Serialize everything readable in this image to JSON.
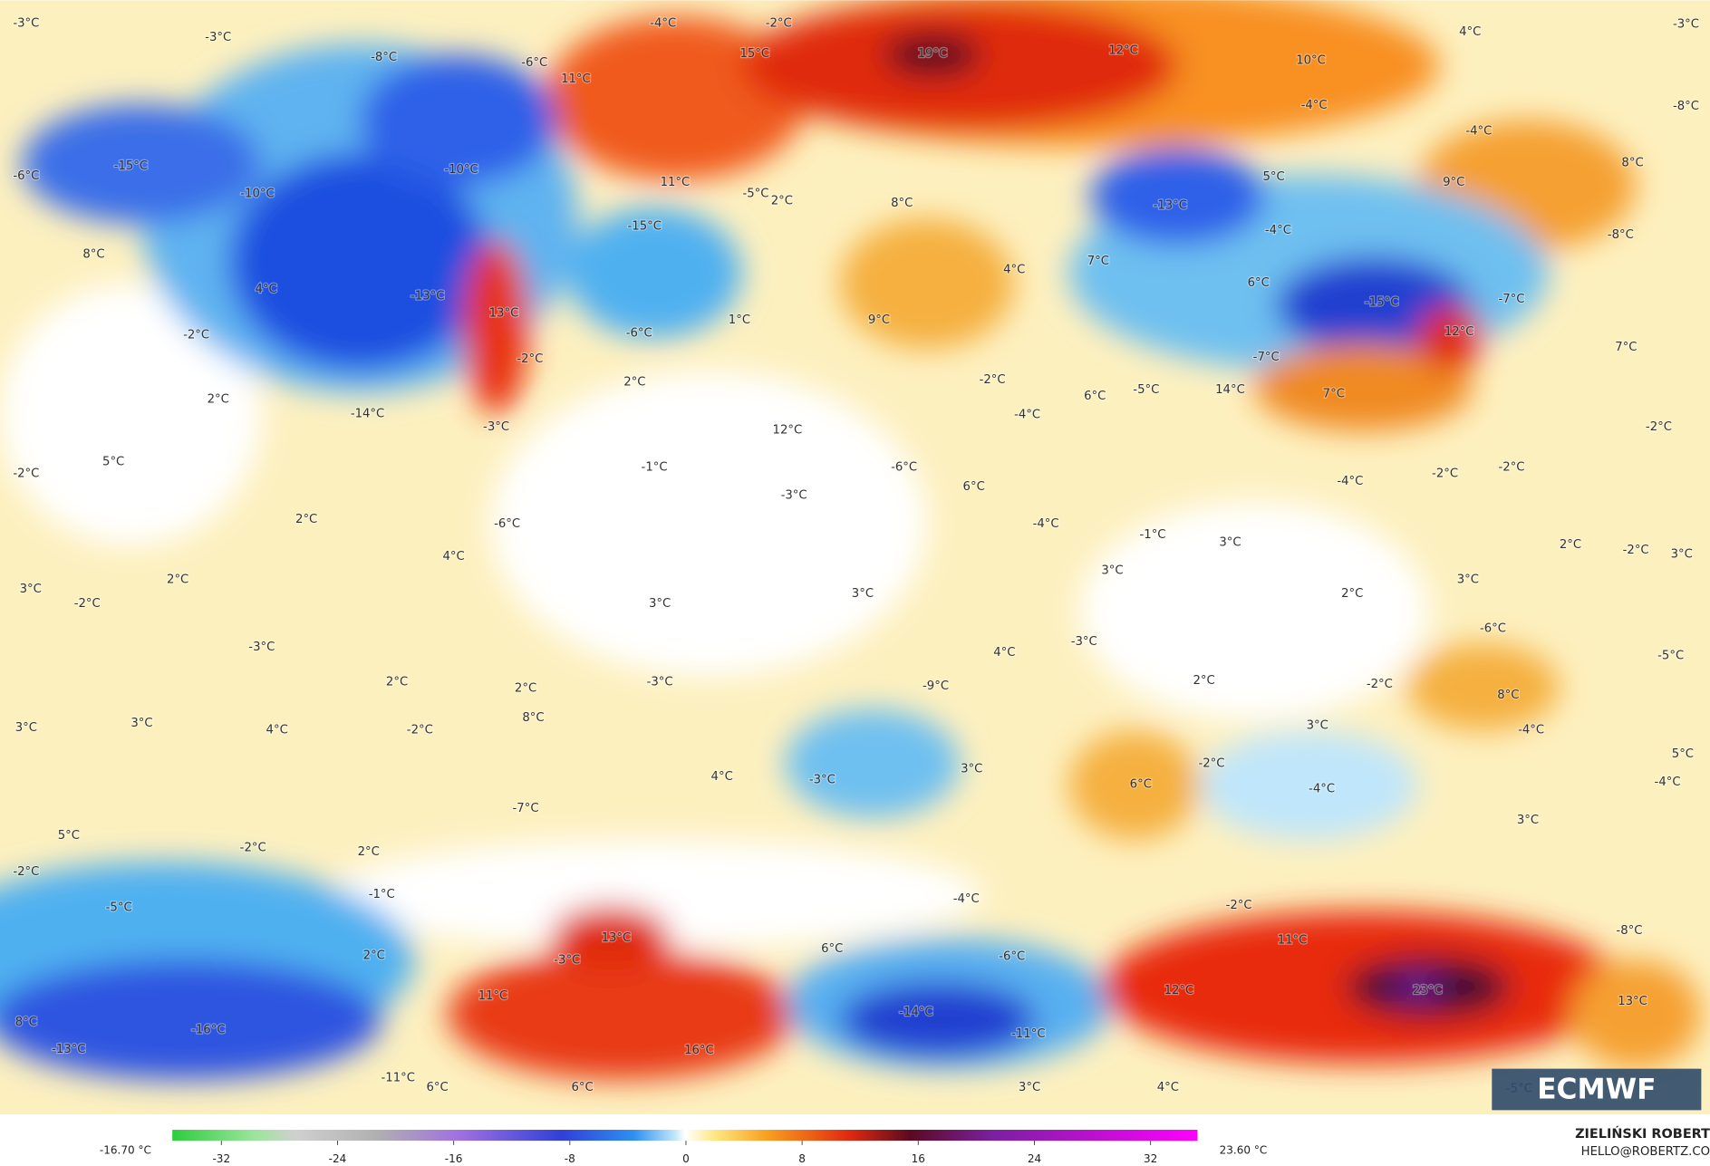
{
  "map": {
    "labels": [
      "-3°C",
      "-3°C",
      "-8°C",
      "-6°C",
      "-4°C",
      "-2°C",
      "15°C",
      "11°C",
      "19°C",
      "12°C",
      "10°C",
      "4°C",
      "-3°C",
      "-8°C",
      "-4°C",
      "-4°C",
      "-15°C",
      "-10°C",
      "-10°C",
      "11°C",
      "-15°C",
      "-5°C",
      "2°C",
      "8°C",
      "-6°C",
      "8°C",
      "-13°C",
      "13°C",
      "4°C",
      "-2°C",
      "-6°C",
      "1°C",
      "-2°C",
      "2°C",
      "2°C",
      "9°C",
      "4°C",
      "-13°C",
      "5°C",
      "-4°C",
      "9°C",
      "8°C",
      "-8°C",
      "7°C",
      "6°C",
      "-15°C",
      "-7°C",
      "12°C",
      "7°C",
      "-7°C",
      "14°C",
      "7°C",
      "-5°C",
      "6°C",
      "-2°C",
      "-14°C",
      "-3°C",
      "12°C",
      "-4°C",
      "-2°C",
      "5°C",
      "-2°C",
      "-1°C",
      "-6°C",
      "6°C",
      "-4°C",
      "-2°C",
      "-2°C",
      "-3°C",
      "-4°C",
      "-1°C",
      "3°C",
      "2°C",
      "-2°C",
      "3°C",
      "2°C",
      "-6°C",
      "4°C",
      "3°C",
      "3°C",
      "2°C",
      "3°C",
      "-2°C",
      "2°C",
      "3°C",
      "3°C",
      "-3°C",
      "-6°C",
      "-3°C",
      "4°C",
      "-5°C",
      "-3°C",
      "2°C",
      "-9°C",
      "2°C",
      "2°C",
      "-2°C",
      "8°C",
      "8°C",
      "3°C",
      "3°C",
      "4°C",
      "-2°C",
      "3°C",
      "-4°C",
      "5°C",
      "4°C",
      "-3°C",
      "3°C",
      "6°C",
      "-2°C",
      "-4°C",
      "-4°C",
      "-7°C",
      "3°C",
      "5°C",
      "-2°C",
      "2°C",
      "-2°C",
      "-1°C",
      "-5°C",
      "-4°C",
      "-2°C",
      "-8°C",
      "13°C",
      "11°C",
      "2°C",
      "-3°C",
      "6°C",
      "-6°C",
      "11°C",
      "12°C",
      "23°C",
      "13°C",
      "-14°C",
      "-16°C",
      "-11°C",
      "8°C",
      "-13°C",
      "16°C",
      "-11°C",
      "6°C",
      "6°C",
      "3°C",
      "4°C",
      "-5°C"
    ]
  },
  "colorbar": {
    "min_label": "-16.70 °C",
    "max_label": "23.60 °C",
    "ticks": [
      -32,
      -24,
      -16,
      -8,
      0,
      8,
      16,
      24,
      32
    ]
  },
  "logo": "ECMWF",
  "credits": {
    "author": "ZIELIŃSKI ROBERT",
    "contact": "HELLO@ROBERTZ.CO"
  }
}
